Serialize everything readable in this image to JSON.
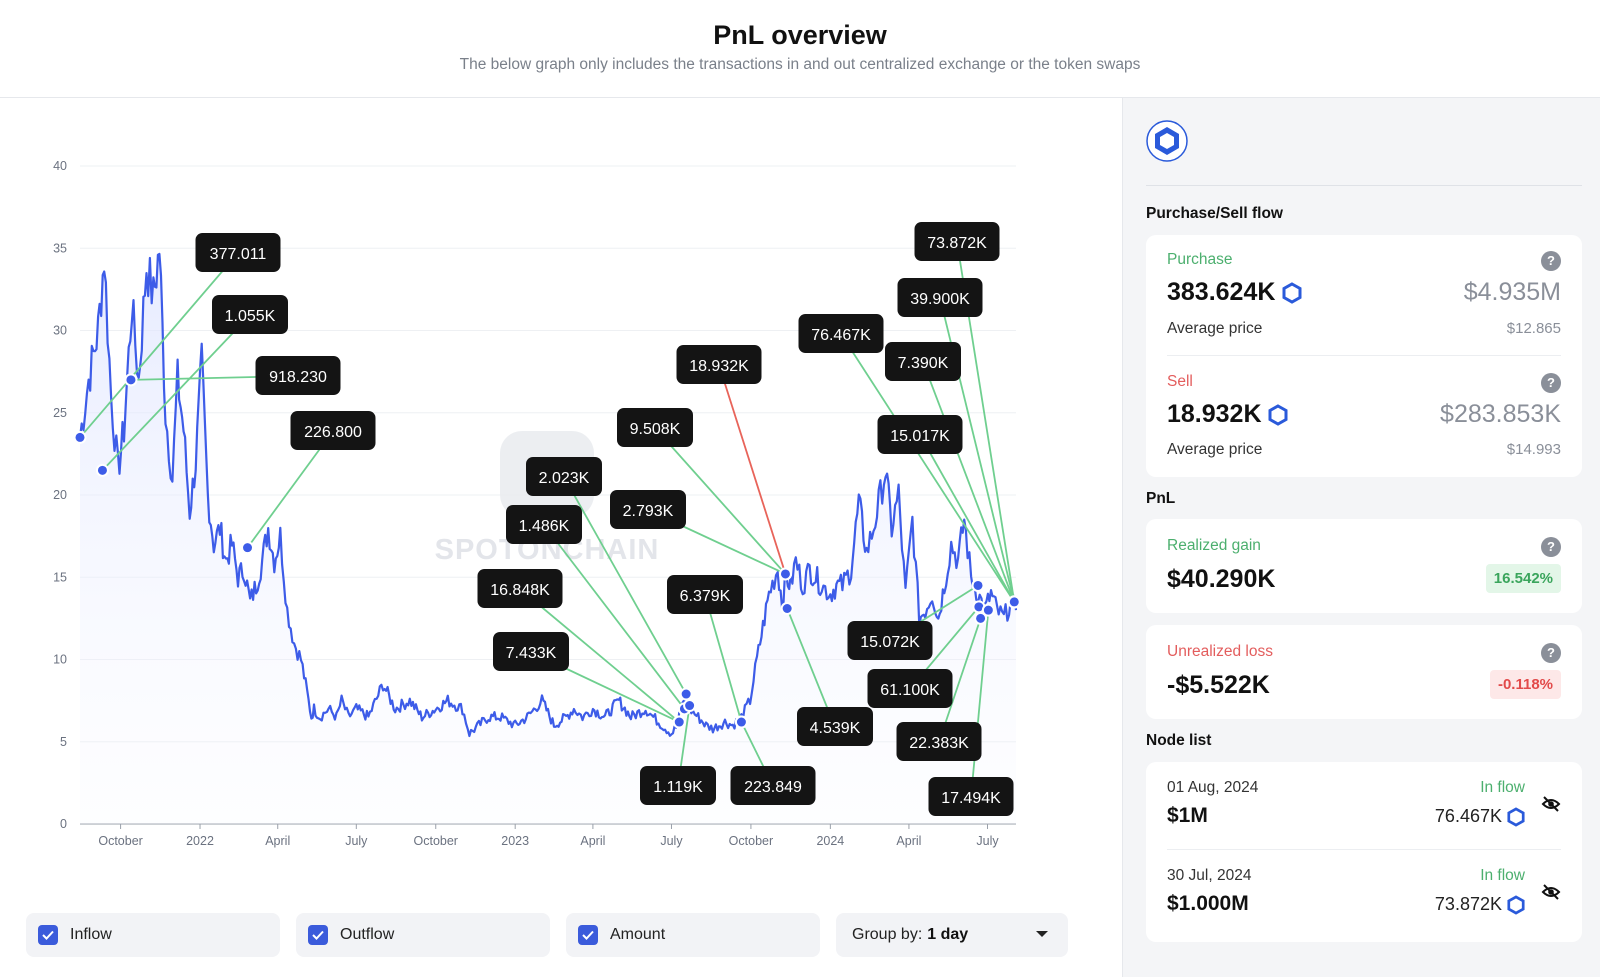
{
  "header": {
    "title": "PnL overview",
    "subtitle": "The below graph only includes the transactions in and out centralized exchange or the token swaps"
  },
  "colors": {
    "accent": "#3b5bdb",
    "line": "#3d5ce8",
    "inflow_connector": "#6fcf8f",
    "outflow_connector": "#e8645a",
    "label_bg": "#141414"
  },
  "chart_data": {
    "type": "line",
    "title": "",
    "xlabel": "",
    "ylabel": "",
    "ylim": [
      0,
      40
    ],
    "yticks": [
      0,
      5,
      10,
      15,
      20,
      25,
      30,
      35,
      40
    ],
    "xtick_labels": [
      "October",
      "2022",
      "April",
      "July",
      "October",
      "2023",
      "April",
      "July",
      "October",
      "2024",
      "April",
      "July"
    ],
    "xtick_dates": [
      "2021-10-01",
      "2022-01-01",
      "2022-04-01",
      "2022-07-01",
      "2022-10-01",
      "2023-01-01",
      "2023-04-01",
      "2023-07-01",
      "2023-10-01",
      "2024-01-01",
      "2024-04-01",
      "2024-07-01"
    ],
    "x_range": [
      "2021-08-15",
      "2024-08-03"
    ],
    "grid": true,
    "watermark": "SPOTONCHAIN",
    "series": [
      {
        "dates": [
          "2021-08-15",
          "2021-08-25",
          "2021-09-05",
          "2021-09-12",
          "2021-09-20",
          "2021-09-28",
          "2021-10-05",
          "2021-10-14",
          "2021-10-22",
          "2021-10-31",
          "2021-11-08",
          "2021-11-15",
          "2021-11-22",
          "2021-11-30",
          "2021-12-06",
          "2021-12-13",
          "2021-12-20",
          "2021-12-27",
          "2022-01-03",
          "2022-01-10",
          "2022-01-17",
          "2022-01-24",
          "2022-01-31",
          "2022-02-07",
          "2022-02-14",
          "2022-02-21",
          "2022-02-28",
          "2022-03-07",
          "2022-03-14",
          "2022-03-21",
          "2022-03-28",
          "2022-04-04",
          "2022-04-12",
          "2022-04-20",
          "2022-04-28",
          "2022-05-05",
          "2022-05-10",
          "2022-05-13",
          "2022-05-20",
          "2022-05-30",
          "2022-06-08",
          "2022-06-14",
          "2022-06-22",
          "2022-07-01",
          "2022-07-15",
          "2022-08-01",
          "2022-08-15",
          "2022-09-01",
          "2022-09-15",
          "2022-10-01",
          "2022-10-15",
          "2022-11-01",
          "2022-11-09",
          "2022-11-20",
          "2022-12-01",
          "2022-12-15",
          "2023-01-01",
          "2023-01-15",
          "2023-02-01",
          "2023-02-15",
          "2023-03-01",
          "2023-03-10",
          "2023-03-20",
          "2023-04-01",
          "2023-04-15",
          "2023-05-01",
          "2023-05-15",
          "2023-06-01",
          "2023-06-10",
          "2023-06-20",
          "2023-07-01",
          "2023-07-08",
          "2023-07-14",
          "2023-07-22",
          "2023-08-01",
          "2023-08-10",
          "2023-08-18",
          "2023-09-01",
          "2023-09-10",
          "2023-09-20",
          "2023-09-30",
          "2023-10-08",
          "2023-10-15",
          "2023-10-22",
          "2023-11-01",
          "2023-11-06",
          "2023-11-11",
          "2023-11-16",
          "2023-11-22",
          "2023-11-30",
          "2023-12-08",
          "2023-12-15",
          "2023-12-22",
          "2024-01-01",
          "2024-01-08",
          "2024-01-15",
          "2024-01-25",
          "2024-02-03",
          "2024-02-12",
          "2024-02-20",
          "2024-02-28",
          "2024-03-05",
          "2024-03-12",
          "2024-03-20",
          "2024-03-28",
          "2024-04-05",
          "2024-04-13",
          "2024-04-20",
          "2024-04-28",
          "2024-05-05",
          "2024-05-12",
          "2024-05-20",
          "2024-05-28",
          "2024-06-04",
          "2024-06-12",
          "2024-06-20",
          "2024-06-28",
          "2024-07-05",
          "2024-07-12",
          "2024-07-20",
          "2024-07-28",
          "2024-08-03"
        ],
        "values": [
          23.5,
          27,
          30,
          34.5,
          26,
          21.5,
          24,
          31.5,
          27,
          34,
          32,
          35,
          25,
          21,
          27,
          24,
          19,
          22,
          28,
          20,
          17,
          18,
          16,
          17,
          15,
          15.5,
          13.5,
          14.5,
          16,
          18,
          16,
          17.5,
          13,
          11,
          10,
          8,
          6.5,
          7,
          6.5,
          7,
          6.5,
          7.5,
          6.5,
          7,
          6.5,
          8.5,
          7,
          7.5,
          6.5,
          7,
          7.5,
          7,
          5.5,
          6,
          6.5,
          6.5,
          6,
          6.5,
          7.5,
          6,
          6.5,
          7,
          6.5,
          7,
          6.5,
          7.5,
          6.5,
          7,
          6.5,
          6,
          5.5,
          6,
          7.5,
          7,
          6.5,
          6,
          5.8,
          6.2,
          6,
          6.5,
          7.5,
          10,
          12,
          14,
          15.5,
          13.5,
          15,
          14.5,
          16,
          14.5,
          15.5,
          15,
          14.5,
          14,
          14.5,
          14.5,
          15.5,
          19.5,
          16.5,
          18,
          20,
          21.5,
          18,
          20,
          14,
          18.5,
          12.5,
          13,
          14,
          12.5,
          14.5,
          17,
          16,
          18.5,
          15,
          14,
          13,
          14,
          13,
          12.5,
          13.5,
          13
        ]
      }
    ],
    "markers": [
      {
        "date": "2021-08-15",
        "value": 23.5,
        "label": "377.011",
        "kind": "inflow"
      },
      {
        "date": "2021-09-10",
        "value": 21.5,
        "label": "1.055K",
        "kind": "inflow"
      },
      {
        "date": "2021-10-13",
        "value": 27,
        "label": "918.230",
        "kind": "inflow"
      },
      {
        "date": "2022-02-25",
        "value": 16.8,
        "label": "226.800",
        "kind": "inflow"
      },
      {
        "date": "2023-07-18",
        "value": 7.9,
        "label": "2.023K",
        "kind": "inflow"
      },
      {
        "date": "2023-07-16",
        "value": 7.0,
        "label": "1.486K",
        "kind": "inflow"
      },
      {
        "date": "2023-07-10",
        "value": 6.2,
        "label": "16.848K",
        "kind": "inflow"
      },
      {
        "date": "2023-07-10",
        "value": 6.2,
        "label": "7.433K",
        "kind": "inflow"
      },
      {
        "date": "2023-07-22",
        "value": 7.2,
        "label": "1.119K",
        "kind": "inflow"
      },
      {
        "date": "2023-11-10",
        "value": 15.2,
        "label": "9.508K",
        "kind": "inflow"
      },
      {
        "date": "2023-11-10",
        "value": 15.2,
        "label": "18.932K",
        "kind": "outflow"
      },
      {
        "date": "2023-11-10",
        "value": 15.2,
        "label": "2.793K",
        "kind": "inflow"
      },
      {
        "date": "2023-09-20",
        "value": 6.2,
        "label": "6.379K",
        "kind": "inflow"
      },
      {
        "date": "2023-09-20",
        "value": 6.2,
        "label": "223.849",
        "kind": "inflow"
      },
      {
        "date": "2023-11-12",
        "value": 13.1,
        "label": "4.539K",
        "kind": "inflow"
      },
      {
        "date": "2024-06-20",
        "value": 14.5,
        "label": "15.072K",
        "kind": "inflow"
      },
      {
        "date": "2024-06-21",
        "value": 13.2,
        "label": "61.100K",
        "kind": "inflow"
      },
      {
        "date": "2024-06-23",
        "value": 12.5,
        "label": "22.383K",
        "kind": "inflow"
      },
      {
        "date": "2024-07-02",
        "value": 13.0,
        "label": "17.494K",
        "kind": "inflow"
      },
      {
        "date": "2024-08-01",
        "value": 13.5,
        "label": "76.467K",
        "kind": "inflow"
      },
      {
        "date": "2024-08-01",
        "value": 13.5,
        "label": "73.872K",
        "kind": "inflow"
      },
      {
        "date": "2024-08-01",
        "value": 13.5,
        "label": "39.900K",
        "kind": "inflow"
      },
      {
        "date": "2024-08-01",
        "value": 13.5,
        "label": "7.390K",
        "kind": "inflow"
      },
      {
        "date": "2024-08-01",
        "value": 13.5,
        "label": "15.017K",
        "kind": "inflow"
      }
    ]
  },
  "controls": {
    "inflow_label": "Inflow",
    "outflow_label": "Outflow",
    "amount_label": "Amount",
    "group_by_label": "Group by:",
    "group_by_value": "1 day"
  },
  "panel": {
    "purchase_sell_title": "Purchase/Sell flow",
    "purchase": {
      "label": "Purchase",
      "amount": "383.624K",
      "usd": "$4.935M",
      "avg_label": "Average price",
      "avg_value": "$12.865"
    },
    "sell": {
      "label": "Sell",
      "amount": "18.932K",
      "usd": "$283.853K",
      "avg_label": "Average price",
      "avg_value": "$14.993"
    },
    "pnl_title": "PnL",
    "realized": {
      "label": "Realized gain",
      "value": "$40.290K",
      "pct": "16.542%"
    },
    "unrealized": {
      "label": "Unrealized loss",
      "value": "-$5.522K",
      "pct": "-0.118%"
    },
    "node_list_title": "Node list",
    "nodes": [
      {
        "date": "01 Aug, 2024",
        "usd": "$1M",
        "flow": "In flow",
        "amount": "76.467K"
      },
      {
        "date": "30 Jul, 2024",
        "usd": "$1.000M",
        "flow": "In flow",
        "amount": "73.872K"
      }
    ]
  }
}
